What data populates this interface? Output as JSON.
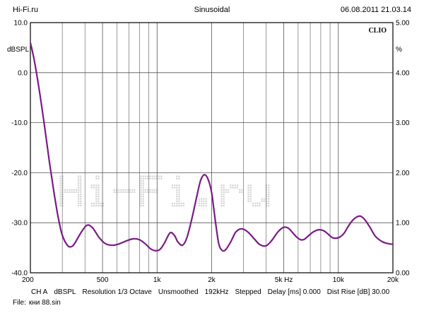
{
  "header": {
    "left": "Hi-Fi.ru",
    "center": "Sinusoidal",
    "right": "06.08.2011 21.03.14"
  },
  "brand": "CLIO",
  "watermark": "Hi-Fi.ru",
  "colors": {
    "curve": "#7a1a86",
    "grid": "#555555",
    "watermark": "#d6d6d6"
  },
  "chart_data": {
    "type": "line",
    "xscale": "log",
    "xlim": [
      200,
      20000
    ],
    "ylim": [
      -40,
      10
    ],
    "y2lim": [
      0,
      5
    ],
    "ylabel": "dBSPL",
    "y2label": "%",
    "x_ticks": [
      {
        "value": 200,
        "label": "200"
      },
      {
        "value": 500,
        "label": "500"
      },
      {
        "value": 1000,
        "label": "1k"
      },
      {
        "value": 2000,
        "label": "2k"
      },
      {
        "value": 5000,
        "label": "5k Hz"
      },
      {
        "value": 10000,
        "label": "10k"
      },
      {
        "value": 20000,
        "label": "20k"
      }
    ],
    "x_minor": [
      300,
      400,
      600,
      700,
      800,
      900,
      3000,
      4000,
      6000,
      7000,
      8000,
      9000
    ],
    "y_ticks": [
      {
        "value": 10,
        "label": "10.0"
      },
      {
        "value": 0,
        "label": "0.0"
      },
      {
        "value": -10,
        "label": "-10.0"
      },
      {
        "value": -20,
        "label": "-20.0"
      },
      {
        "value": -30,
        "label": "-30.0"
      },
      {
        "value": -40,
        "label": "-40.0"
      }
    ],
    "y2_ticks": [
      {
        "value": 5,
        "label": "5.00"
      },
      {
        "value": 4,
        "label": "4.00"
      },
      {
        "value": 3,
        "label": "3.00"
      },
      {
        "value": 2,
        "label": "2.00"
      },
      {
        "value": 1,
        "label": "1.00"
      },
      {
        "value": 0,
        "label": "0.00"
      }
    ],
    "series": [
      {
        "x": [
          200,
          210,
          225,
          240,
          255,
          270,
          285,
          300,
          320,
          335,
          350,
          380,
          410,
          440,
          480,
          520,
          570,
          620,
          680,
          740,
          800,
          860,
          920,
          980,
          1040,
          1100,
          1180,
          1250,
          1300,
          1380,
          1460,
          1560,
          1650,
          1740,
          1830,
          1920,
          2000,
          2060,
          2130,
          2200,
          2300,
          2400,
          2550,
          2700,
          2850,
          3000,
          3200,
          3450,
          3700,
          4000,
          4300,
          4650,
          5000,
          5300,
          5600,
          5900,
          6200,
          6500,
          6900,
          7300,
          7800,
          8300,
          8800,
          9300,
          10000,
          10700,
          11300,
          12000,
          12700,
          13300,
          14000,
          15000,
          16000,
          17500,
          19000,
          20000
        ],
        "y": [
          6.0,
          2.5,
          -4.0,
          -11.0,
          -18.0,
          -24.0,
          -29.0,
          -32.5,
          -34.5,
          -34.8,
          -34.2,
          -32.0,
          -30.5,
          -31.0,
          -33.0,
          -34.2,
          -34.5,
          -34.2,
          -33.6,
          -33.2,
          -33.4,
          -34.2,
          -35.2,
          -35.6,
          -35.3,
          -34.0,
          -32.0,
          -32.6,
          -33.8,
          -34.5,
          -33.0,
          -29.0,
          -25.0,
          -21.5,
          -20.4,
          -21.5,
          -24.0,
          -27.5,
          -31.5,
          -34.5,
          -35.6,
          -35.3,
          -33.8,
          -32.0,
          -31.3,
          -31.3,
          -32.0,
          -33.3,
          -34.4,
          -34.6,
          -33.5,
          -31.8,
          -30.9,
          -31.1,
          -32.0,
          -32.9,
          -33.4,
          -33.3,
          -32.5,
          -31.8,
          -31.4,
          -31.6,
          -32.3,
          -33.0,
          -33.0,
          -32.2,
          -30.8,
          -29.5,
          -28.8,
          -28.7,
          -29.4,
          -31.0,
          -32.7,
          -33.8,
          -34.2,
          -34.3
        ]
      }
    ]
  },
  "footer": {
    "channel": "CH A",
    "units": "dBSPL",
    "resolution": "Resolution 1/3 Octave",
    "smoothing": "Unsmoothed",
    "rate": "192kHz",
    "mode": "Stepped",
    "delay": "Delay [ms] 0.000",
    "dist": "Dist Rise [dB] 30.00"
  },
  "file": {
    "label": "File:",
    "name": "кни 88.sin"
  }
}
